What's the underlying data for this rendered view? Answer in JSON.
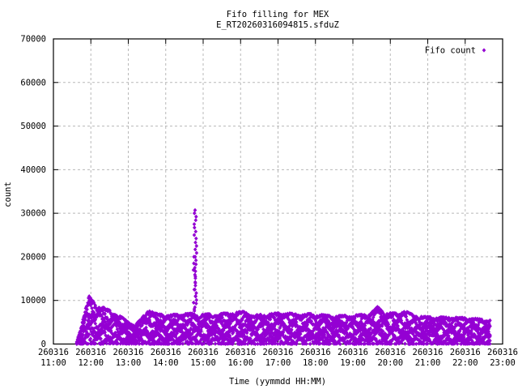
{
  "chart_data": {
    "type": "scatter",
    "title": "Fifo filling for MEX",
    "subtitle": "E_RT20260316094815.sfduZ",
    "xlabel": "Time (yymmdd HH:MM)",
    "ylabel": "count",
    "legend": {
      "label": "Fifo count",
      "marker": "diamond"
    },
    "colors": {
      "points": "#9400d3",
      "grid": "#b8b8b8",
      "axis": "#000000",
      "background": "#ffffff"
    },
    "grid": true,
    "legend_position": "top-right-inside",
    "ylim": [
      0,
      70000
    ],
    "y_ticks": [
      0,
      10000,
      20000,
      30000,
      40000,
      50000,
      60000,
      70000
    ],
    "x_tick_date": "260316",
    "x_tick_times": [
      "11:00",
      "12:00",
      "13:00",
      "14:00",
      "15:00",
      "16:00",
      "17:00",
      "18:00",
      "19:00",
      "20:00",
      "21:00",
      "22:00",
      "23:00"
    ],
    "x_range_minutes": [
      0,
      720
    ],
    "band": {
      "comment": "Dense oscillating band of Fifo count samples; envelope sampled as [minutes after 11:00, max count]",
      "start_min": 37.5,
      "end_min": 700,
      "step_min": 1.1,
      "envelope": [
        [
          37,
          300
        ],
        [
          44,
          4000
        ],
        [
          57,
          11000
        ],
        [
          67,
          9200
        ],
        [
          89,
          7800
        ],
        [
          109,
          6200
        ],
        [
          122,
          5000
        ],
        [
          130,
          4300
        ],
        [
          141,
          5800
        ],
        [
          154,
          8300
        ],
        [
          163,
          7000
        ],
        [
          180,
          6600
        ],
        [
          206,
          6900
        ],
        [
          223,
          7000
        ],
        [
          239,
          6800
        ],
        [
          265,
          6900
        ],
        [
          304,
          7400
        ],
        [
          323,
          6600
        ],
        [
          347,
          6900
        ],
        [
          371,
          7200
        ],
        [
          394,
          6700
        ],
        [
          418,
          7000
        ],
        [
          446,
          6400
        ],
        [
          485,
          6600
        ],
        [
          508,
          7000
        ],
        [
          520,
          8600
        ],
        [
          531,
          7300
        ],
        [
          550,
          7000
        ],
        [
          563,
          7600
        ],
        [
          579,
          6500
        ],
        [
          602,
          6200
        ],
        [
          636,
          6100
        ],
        [
          660,
          6000
        ],
        [
          680,
          5800
        ],
        [
          690,
          5700
        ],
        [
          700,
          5500
        ]
      ],
      "strands": [
        {
          "base": 0.95,
          "amp": 0.05,
          "period": 27,
          "phase": 0.1
        },
        {
          "base": 0.8,
          "amp": 0.12,
          "period": 21,
          "phase": 0.55
        },
        {
          "base": 0.66,
          "amp": 0.13,
          "period": 24,
          "phase": 0.2
        },
        {
          "base": 0.52,
          "amp": 0.13,
          "period": 18,
          "phase": 0.8
        },
        {
          "base": 0.38,
          "amp": 0.12,
          "period": 29,
          "phase": 0.35
        },
        {
          "base": 0.24,
          "amp": 0.1,
          "period": 22,
          "phase": 0.65
        },
        {
          "base": 0.11,
          "amp": 0.08,
          "period": 17,
          "phase": 0.05
        }
      ],
      "noise_fraction": 0.12,
      "baseline": {
        "step_min": 2.0,
        "max_count": 140,
        "density": 0.65
      }
    },
    "spike": {
      "comment": "FIFO overflow spike near 14:45",
      "columns": [
        {
          "minute": 227.6,
          "values": [
            7600,
            8450,
            9300,
            10100,
            10900,
            11700,
            12500,
            13400,
            14200,
            15100,
            15900,
            16700,
            17500,
            18300,
            19200,
            20000,
            20900,
            21700,
            22500,
            23300,
            24200,
            25000,
            25800,
            26700,
            27500,
            28400,
            29200,
            30000,
            30700
          ]
        },
        {
          "minute": 226.2,
          "values": [
            8000,
            9500,
            11000,
            12500,
            14000,
            15500,
            17000,
            18500,
            20000
          ]
        }
      ]
    }
  }
}
